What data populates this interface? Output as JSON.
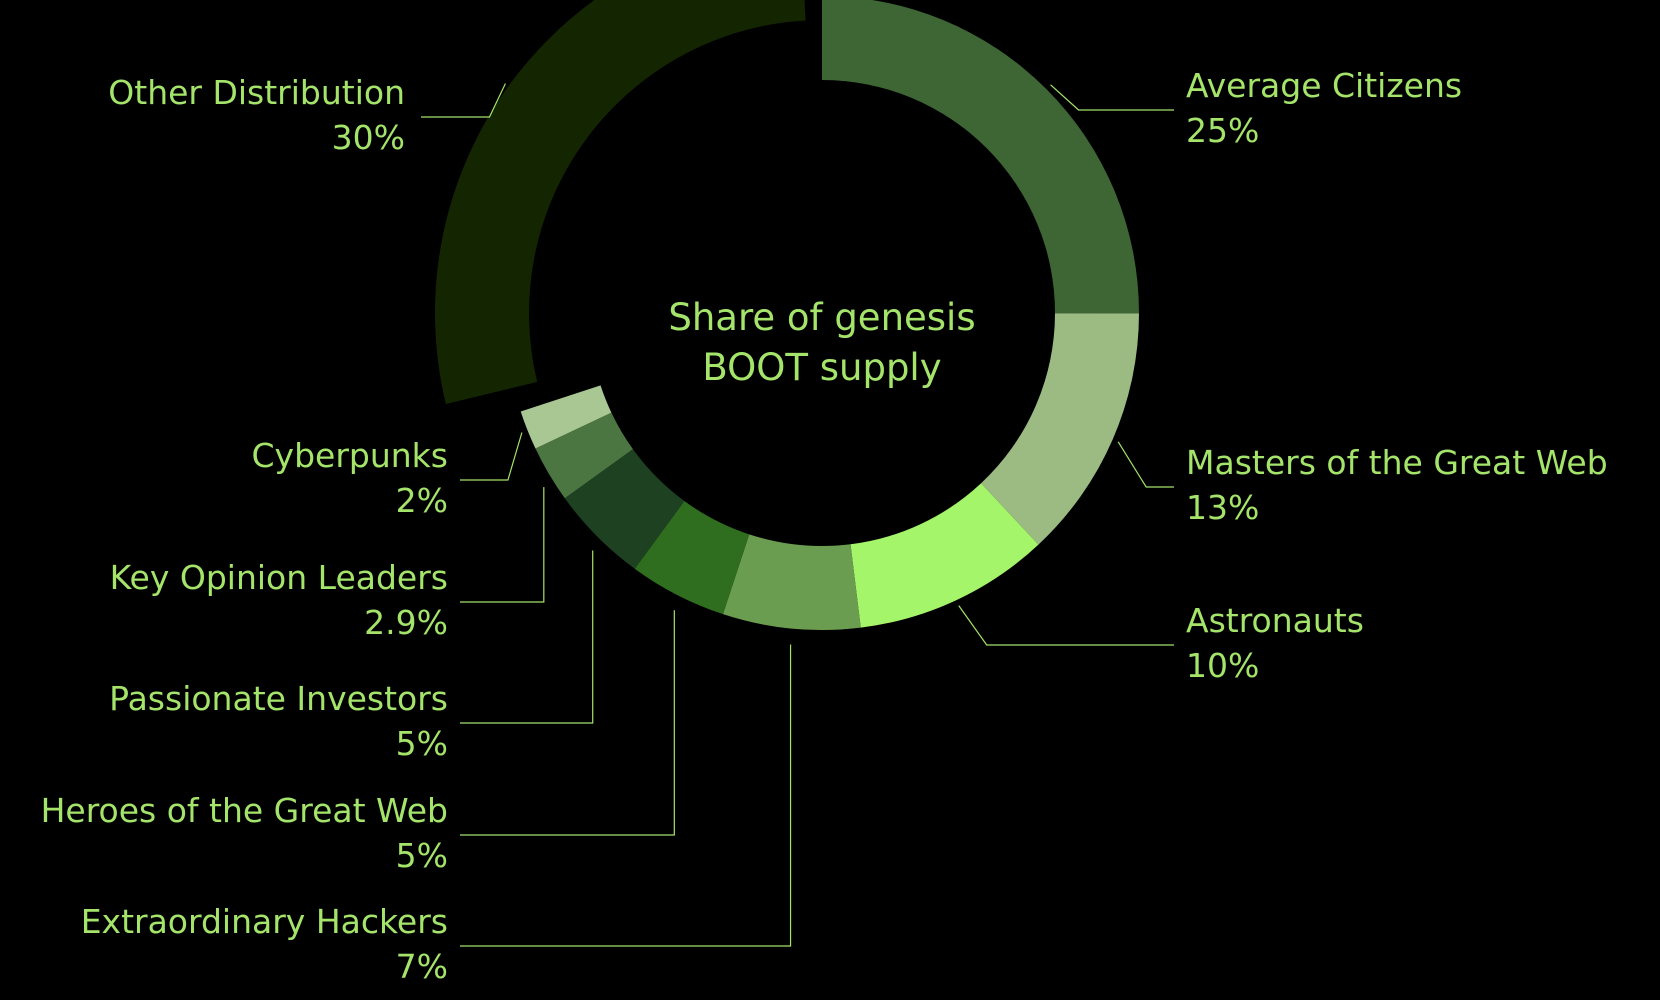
{
  "chart_data": {
    "type": "pie",
    "title": "Share of genesis BOOT supply",
    "series": [
      {
        "name": "Average Citizens",
        "value": 25,
        "label": "25%",
        "color": "#3e6534"
      },
      {
        "name": "Masters of the Great Web",
        "value": 13,
        "label": "13%",
        "color": "#9cbb82"
      },
      {
        "name": "Astronauts",
        "value": 10,
        "label": "10%",
        "color": "#a4f56a"
      },
      {
        "name": "Extraordinary Hackers",
        "value": 7,
        "label": "7%",
        "color": "#6b9d51"
      },
      {
        "name": "Heroes of the Great Web",
        "value": 5,
        "label": "5%",
        "color": "#2f6e1f"
      },
      {
        "name": "Passionate Investors",
        "value": 5,
        "label": "5%",
        "color": "#1d4121"
      },
      {
        "name": "Key Opinion Leaders",
        "value": 2.9,
        "label": "2.9%",
        "color": "#4b7541"
      },
      {
        "name": "Cyberpunks",
        "value": 2,
        "label": "2%",
        "color": "#a9c792"
      },
      {
        "name": "Other Distribution",
        "value": 30,
        "label": "30%",
        "color": "#142601"
      }
    ],
    "legend": "none"
  }
}
